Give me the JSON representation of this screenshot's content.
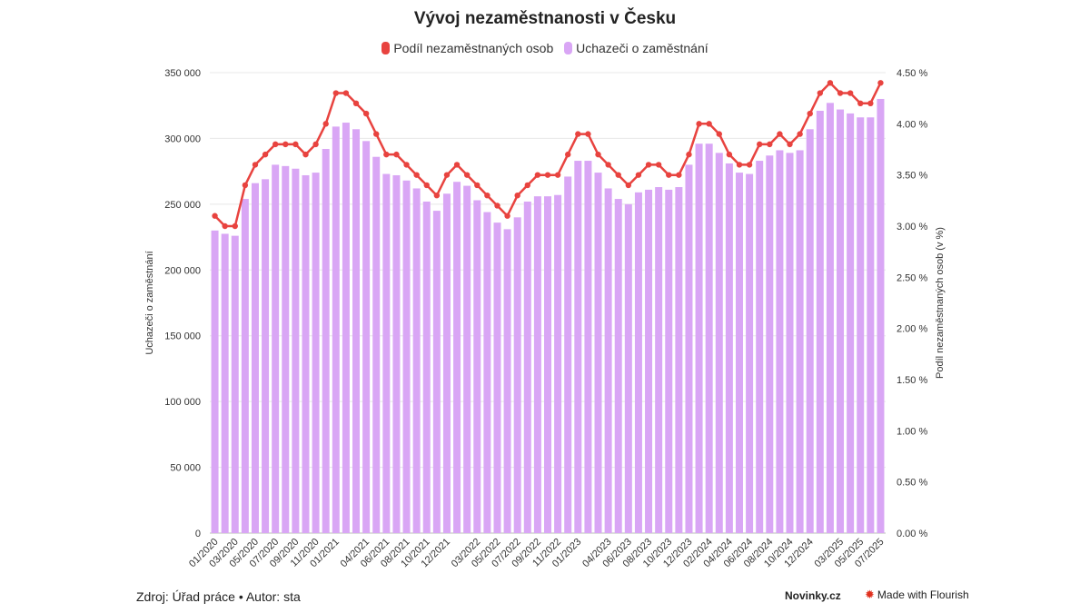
{
  "title": "Vývoj nezaměstnanosti v Česku",
  "legend": [
    {
      "label": "Podíl nezaměstnaných osob",
      "color": "#e8433f"
    },
    {
      "label": "Uchazeči o zaměstnání",
      "color": "#d9a6f5"
    }
  ],
  "footer": {
    "source": "Zdroj: Úřad práce • Autor: sta",
    "brand": "Novinky.cz",
    "flourish": "Made with Flourish",
    "flourish_icon": "star-burst-icon"
  },
  "chart_data": {
    "type": "bar+line",
    "title": "Vývoj nezaměstnanosti v Česku",
    "ylabel_left": "Uchazeči o zaměstnání",
    "ylabel_right": "Podíl nezaměstnaných osob (v %)",
    "ylim_left": [
      0,
      350000
    ],
    "ylim_right": [
      0,
      4.5
    ],
    "yticks_left": [
      "0",
      "50 000",
      "100 000",
      "150 000",
      "200 000",
      "250 000",
      "300 000",
      "350 000"
    ],
    "yticks_right": [
      "0.00 %",
      "0.50 %",
      "1.00 %",
      "1.50 %",
      "2.00 %",
      "2.50 %",
      "3.00 %",
      "3.50 %",
      "4.00 %",
      "4.50 %"
    ],
    "grid": true,
    "legend_position": "top-center",
    "categories": [
      "01/2020",
      "02/2020",
      "03/2020",
      "04/2020",
      "05/2020",
      "06/2020",
      "07/2020",
      "08/2020",
      "09/2020",
      "10/2020",
      "11/2020",
      "12/2020",
      "01/2021",
      "02/2021",
      "03/2021",
      "04/2021",
      "05/2021",
      "06/2021",
      "07/2021",
      "08/2021",
      "09/2021",
      "10/2021",
      "11/2021",
      "12/2021",
      "01/2022",
      "02/2022",
      "03/2022",
      "04/2022",
      "05/2022",
      "06/2022",
      "07/2022",
      "08/2022",
      "09/2022",
      "10/2022",
      "11/2022",
      "12/2022",
      "01/2023",
      "02/2023",
      "03/2023",
      "04/2023",
      "05/2023",
      "06/2023",
      "07/2023",
      "08/2023",
      "09/2023",
      "10/2023",
      "11/2023",
      "12/2023",
      "01/2024",
      "02/2024",
      "03/2024",
      "04/2024",
      "05/2024",
      "06/2024",
      "07/2024",
      "08/2024",
      "09/2024",
      "10/2024",
      "11/2024",
      "12/2024",
      "01/2025",
      "02/2025",
      "03/2025",
      "04/2025",
      "05/2025",
      "06/2025",
      "07/2025"
    ],
    "tick_labels": [
      "01/2020",
      "03/2020",
      "05/2020",
      "07/2020",
      "09/2020",
      "11/2020",
      "01/2021",
      "04/2021",
      "06/2021",
      "08/2021",
      "10/2021",
      "12/2021",
      "03/2022",
      "05/2022",
      "07/2022",
      "09/2022",
      "11/2022",
      "01/2023",
      "04/2023",
      "06/2023",
      "08/2023",
      "10/2023",
      "12/2023",
      "02/2024",
      "04/2024",
      "06/2024",
      "08/2024",
      "10/2024",
      "12/2024",
      "03/2025",
      "05/2025",
      "07/2025"
    ],
    "series": [
      {
        "name": "Uchazeči o zaměstnání",
        "type": "bar",
        "color": "#d9a6f5",
        "axis": "left",
        "values": [
          230000,
          227500,
          226000,
          254000,
          266000,
          269000,
          280000,
          279000,
          277000,
          272000,
          274000,
          292000,
          309000,
          312000,
          307000,
          298000,
          286000,
          273000,
          272000,
          268000,
          262000,
          252000,
          245000,
          258000,
          267000,
          264000,
          253000,
          244000,
          236000,
          231000,
          240000,
          252000,
          256000,
          256000,
          257000,
          271000,
          283000,
          283000,
          274000,
          262000,
          254000,
          250000,
          259000,
          261000,
          263000,
          261000,
          263000,
          280000,
          296000,
          296000,
          289000,
          281000,
          274000,
          273000,
          283000,
          287000,
          291000,
          289000,
          291000,
          307000,
          321000,
          327000,
          322000,
          319000,
          316000,
          316000,
          330000
        ]
      },
      {
        "name": "Podíl nezaměstnaných osob",
        "type": "line",
        "color": "#e8433f",
        "axis": "right",
        "values": [
          3.1,
          3.0,
          3.0,
          3.4,
          3.6,
          3.7,
          3.8,
          3.8,
          3.8,
          3.7,
          3.8,
          4.0,
          4.3,
          4.3,
          4.2,
          4.1,
          3.9,
          3.7,
          3.7,
          3.6,
          3.5,
          3.4,
          3.3,
          3.5,
          3.6,
          3.5,
          3.4,
          3.3,
          3.2,
          3.1,
          3.3,
          3.4,
          3.5,
          3.5,
          3.5,
          3.7,
          3.9,
          3.9,
          3.7,
          3.6,
          3.5,
          3.4,
          3.5,
          3.6,
          3.6,
          3.5,
          3.5,
          3.7,
          4.0,
          4.0,
          3.9,
          3.7,
          3.6,
          3.6,
          3.8,
          3.8,
          3.9,
          3.8,
          3.9,
          4.1,
          4.3,
          4.4,
          4.3,
          4.3,
          4.2,
          4.2,
          4.4
        ]
      }
    ]
  }
}
